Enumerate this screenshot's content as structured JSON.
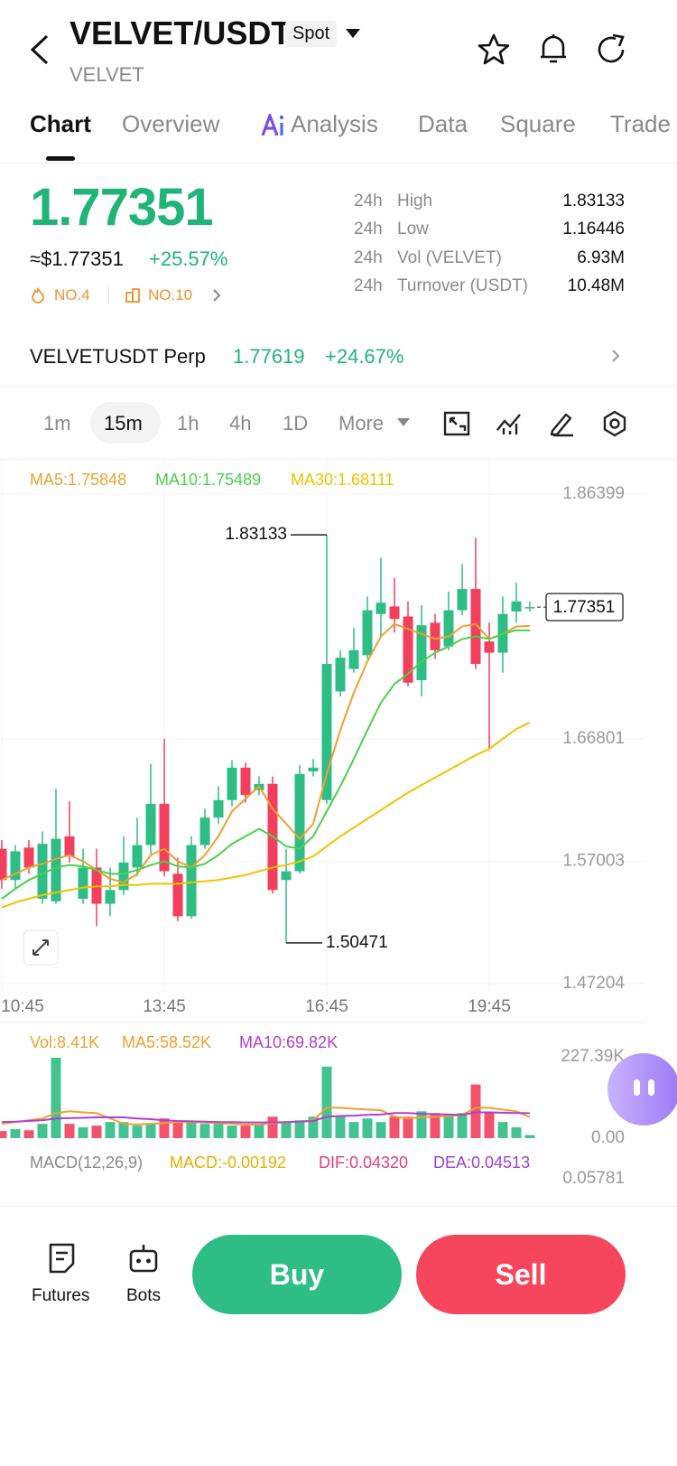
{
  "header": {
    "title": "VELVET/USDT",
    "badge": "Spot",
    "subtitle": "VELVET"
  },
  "tabs": [
    "Chart",
    "Overview",
    "Analysis",
    "Data",
    "Square",
    "Trade"
  ],
  "price": {
    "last": "1.77351",
    "usd": "≈$1.77351",
    "change": "+25.57%",
    "rank_hot": "NO.4",
    "rank_sector": "NO.10"
  },
  "stats": [
    [
      "24h",
      "High",
      "1.83133"
    ],
    [
      "24h",
      "Low",
      "1.16446"
    ],
    [
      "24h",
      "Vol (VELVET)",
      "6.93M"
    ],
    [
      "24h",
      "Turnover (USDT)",
      "10.48M"
    ]
  ],
  "perp": {
    "name": "VELVETUSDT Perp",
    "price": "1.77619",
    "change": "+24.67%"
  },
  "intervals": [
    "1m",
    "15m",
    "1h",
    "4h",
    "1D",
    "More"
  ],
  "chart_data": [
    {
      "type": "candlestick",
      "categories": [
        "10:45",
        null,
        null,
        null,
        null,
        null,
        null,
        null,
        null,
        null,
        null,
        null,
        "13:45",
        null,
        null,
        null,
        null,
        null,
        null,
        null,
        null,
        null,
        null,
        null,
        "16:45",
        null,
        null,
        null,
        null,
        null,
        null,
        null,
        null,
        null,
        null,
        null,
        "19:45",
        null,
        null,
        null
      ],
      "open": [
        1.58,
        1.555,
        1.581,
        1.54,
        1.538,
        1.59,
        1.54,
        1.565,
        1.536,
        1.547,
        1.565,
        1.583,
        1.616,
        1.56,
        1.526,
        1.583,
        1.605,
        1.619,
        1.645,
        1.627,
        1.632,
        1.555,
        1.562,
        1.642,
        1.619,
        1.706,
        1.724,
        1.735,
        1.768,
        1.774,
        1.766,
        1.715,
        1.761,
        1.742,
        1.771,
        1.788,
        1.746,
        1.737,
        1.77,
        1.773
      ],
      "high": [
        1.587,
        1.583,
        1.587,
        1.594,
        1.628,
        1.618,
        1.58,
        1.58,
        1.565,
        1.59,
        1.605,
        1.648,
        1.668,
        1.573,
        1.59,
        1.612,
        1.63,
        1.651,
        1.649,
        1.638,
        1.638,
        1.58,
        1.647,
        1.652,
        1.83133,
        1.739,
        1.757,
        1.782,
        1.813,
        1.797,
        1.778,
        1.775,
        1.768,
        1.786,
        1.808,
        1.829,
        1.761,
        1.782,
        1.793,
        1.778
      ],
      "low": [
        1.548,
        1.548,
        1.56,
        1.536,
        1.536,
        1.569,
        1.536,
        1.518,
        1.526,
        1.543,
        1.558,
        1.576,
        1.558,
        1.522,
        1.524,
        1.58,
        1.6,
        1.614,
        1.617,
        1.623,
        1.544,
        1.50471,
        1.56,
        1.638,
        1.616,
        1.702,
        1.721,
        1.732,
        1.75,
        1.753,
        1.71,
        1.702,
        1.732,
        1.739,
        1.767,
        1.724,
        1.659,
        1.721,
        1.761,
        1.77
      ],
      "close": [
        1.555,
        1.578,
        1.565,
        1.584,
        1.588,
        1.574,
        1.565,
        1.536,
        1.547,
        1.569,
        1.583,
        1.616,
        1.562,
        1.526,
        1.583,
        1.605,
        1.619,
        1.645,
        1.623,
        1.632,
        1.547,
        1.562,
        1.64,
        1.645,
        1.728,
        1.733,
        1.739,
        1.771,
        1.777,
        1.764,
        1.713,
        1.759,
        1.739,
        1.771,
        1.788,
        1.728,
        1.737,
        1.768,
        1.778,
        1.77351
      ],
      "up_color": "#2dbd85",
      "down_color": "#f23f5d",
      "series": [
        {
          "name": "MA5:1.75848",
          "color": "#f0a030",
          "values": [
            1.555,
            1.56,
            1.565,
            1.568,
            1.572,
            1.575,
            1.57,
            1.563,
            1.556,
            1.553,
            1.56,
            1.575,
            1.58,
            1.57,
            1.565,
            1.575,
            1.59,
            1.61,
            1.62,
            1.63,
            1.612,
            1.6,
            1.588,
            1.6,
            1.64,
            1.675,
            1.705,
            1.73,
            1.75,
            1.76,
            1.756,
            1.752,
            1.748,
            1.75,
            1.758,
            1.76,
            1.748,
            1.752,
            1.758,
            1.75848
          ]
        },
        {
          "name": "MA10:1.75489",
          "color": "#4cd04c",
          "values": [
            1.54,
            1.548,
            1.555,
            1.56,
            1.565,
            1.567,
            1.566,
            1.563,
            1.56,
            1.56,
            1.563,
            1.567,
            1.57,
            1.566,
            1.565,
            1.568,
            1.575,
            1.584,
            1.59,
            1.596,
            1.59,
            1.582,
            1.58,
            1.59,
            1.61,
            1.63,
            1.652,
            1.675,
            1.697,
            1.712,
            1.72,
            1.73,
            1.737,
            1.742,
            1.748,
            1.75,
            1.748,
            1.752,
            1.755,
            1.75489
          ]
        },
        {
          "name": "MA30:1.68111",
          "color": "#f2c200",
          "values": [
            1.533,
            1.537,
            1.54,
            1.543,
            1.545,
            1.547,
            1.549,
            1.55,
            1.55,
            1.551,
            1.551,
            1.552,
            1.552,
            1.552,
            1.553,
            1.554,
            1.555,
            1.557,
            1.559,
            1.562,
            1.565,
            1.567,
            1.57,
            1.574,
            1.582,
            1.59,
            1.597,
            1.604,
            1.611,
            1.618,
            1.625,
            1.631,
            1.637,
            1.643,
            1.649,
            1.655,
            1.66,
            1.668,
            1.676,
            1.68111
          ]
        }
      ],
      "ylim": [
        1.47204,
        1.86399
      ],
      "yticks": [
        1.47204,
        1.57003,
        1.66801,
        1.86399
      ],
      "high_label": 1.83133,
      "low_label": 1.50471,
      "last_price": 1.77351,
      "grid": true
    },
    {
      "type": "bar",
      "title": "Vol:8.41K",
      "values": [
        20,
        25,
        22,
        40,
        225,
        40,
        30,
        35,
        45,
        45,
        35,
        40,
        55,
        45,
        45,
        40,
        40,
        35,
        35,
        40,
        60,
        45,
        50,
        60,
        200,
        60,
        45,
        55,
        45,
        60,
        60,
        75,
        70,
        65,
        70,
        150,
        70,
        45,
        30,
        8.41
      ],
      "series": [
        {
          "name": "MA5:58.52K",
          "color": "#f0a030",
          "values": [
            40,
            45,
            50,
            55,
            70,
            75,
            72,
            70,
            55,
            40,
            38,
            40,
            42,
            45,
            45,
            44,
            42,
            40,
            38,
            38,
            42,
            44,
            46,
            50,
            85,
            85,
            82,
            80,
            78,
            60,
            55,
            58,
            60,
            62,
            65,
            85,
            85,
            80,
            75,
            58.52
          ]
        },
        {
          "name": "MA10:69.82K",
          "color": "#b040d0",
          "values": [
            45,
            46,
            48,
            50,
            55,
            56,
            57,
            58,
            58,
            58,
            55,
            53,
            50,
            48,
            47,
            46,
            45,
            45,
            44,
            44,
            44,
            45,
            46,
            48,
            60,
            62,
            63,
            65,
            66,
            70,
            70,
            68,
            67,
            66,
            65,
            72,
            72,
            71,
            70,
            69.82
          ]
        }
      ],
      "ylim": [
        0,
        227.39
      ],
      "yticks": [
        {
          "value": 0,
          "label": "0.00"
        },
        {
          "value": 227.39,
          "label": "227.39K"
        }
      ]
    }
  ],
  "macd": {
    "name": "MACD(12,26,9)",
    "macd": "MACD:-0.00192",
    "dif": "DIF:0.04320",
    "dea": "DEA:0.04513",
    "ytick": 0.05781
  },
  "bottom": {
    "futures": "Futures",
    "bots": "Bots",
    "buy": "Buy",
    "sell": "Sell"
  }
}
